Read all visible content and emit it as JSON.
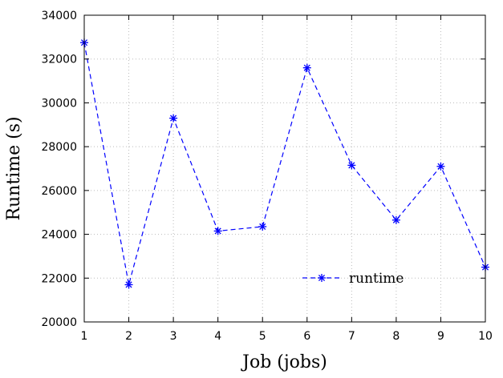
{
  "chart_data": {
    "type": "line",
    "title": "",
    "xlabel": "Job (jobs)",
    "ylabel": "Runtime (s)",
    "x": [
      1,
      2,
      3,
      4,
      5,
      6,
      7,
      8,
      9,
      10
    ],
    "xlim": [
      1,
      10
    ],
    "ylim": [
      20000,
      34000
    ],
    "xticks": [
      1,
      2,
      3,
      4,
      5,
      6,
      7,
      8,
      9,
      10
    ],
    "yticks": [
      20000,
      22000,
      24000,
      26000,
      28000,
      30000,
      32000,
      34000
    ],
    "grid": true,
    "legend_position": "bottom-right",
    "series": [
      {
        "name": "runtime",
        "color": "#0000ff",
        "line_style": "dashed",
        "marker": "asterisk",
        "values": [
          32750,
          21700,
          29300,
          24150,
          24350,
          31600,
          27150,
          24650,
          27100,
          22500
        ]
      }
    ]
  }
}
